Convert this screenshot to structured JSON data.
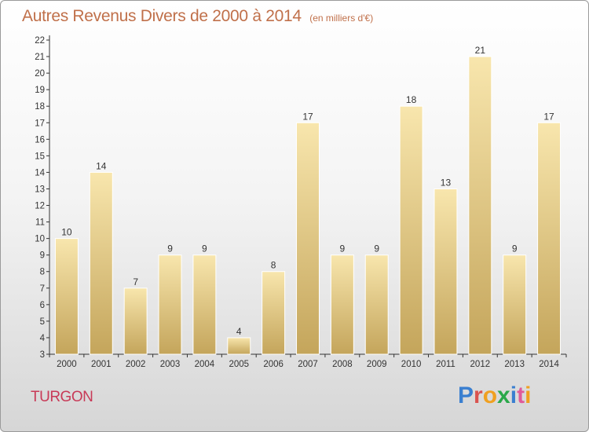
{
  "header": {
    "title": "Autres Revenus Divers de 2000 à 2014",
    "unit": "(en milliers d'€)"
  },
  "footer": {
    "commune": "TURGON",
    "brand": "Proxiti"
  },
  "colors": {
    "title": "#c0704a",
    "commune": "#c83a57",
    "bar_light": "#f7e3a6",
    "bar_dark": "#c7a75d",
    "logo": [
      "#3a7fd0",
      "#d9534f",
      "#f0a020",
      "#2aa84a",
      "#3a7fd0",
      "#e05a9a",
      "#f0a020"
    ]
  },
  "chart_data": {
    "type": "bar",
    "categories": [
      "2000",
      "2001",
      "2002",
      "2003",
      "2004",
      "2005",
      "2006",
      "2007",
      "2008",
      "2009",
      "2010",
      "2011",
      "2012",
      "2013",
      "2014"
    ],
    "values": [
      10,
      14,
      7,
      9,
      9,
      4,
      8,
      17,
      9,
      9,
      18,
      13,
      21,
      9,
      17
    ],
    "ylim": [
      3,
      22
    ],
    "yticks": [
      3,
      4,
      5,
      6,
      7,
      8,
      9,
      10,
      11,
      12,
      13,
      14,
      15,
      16,
      17,
      18,
      19,
      20,
      21,
      22
    ],
    "grid": false,
    "data_labels": true,
    "legend": "none"
  }
}
